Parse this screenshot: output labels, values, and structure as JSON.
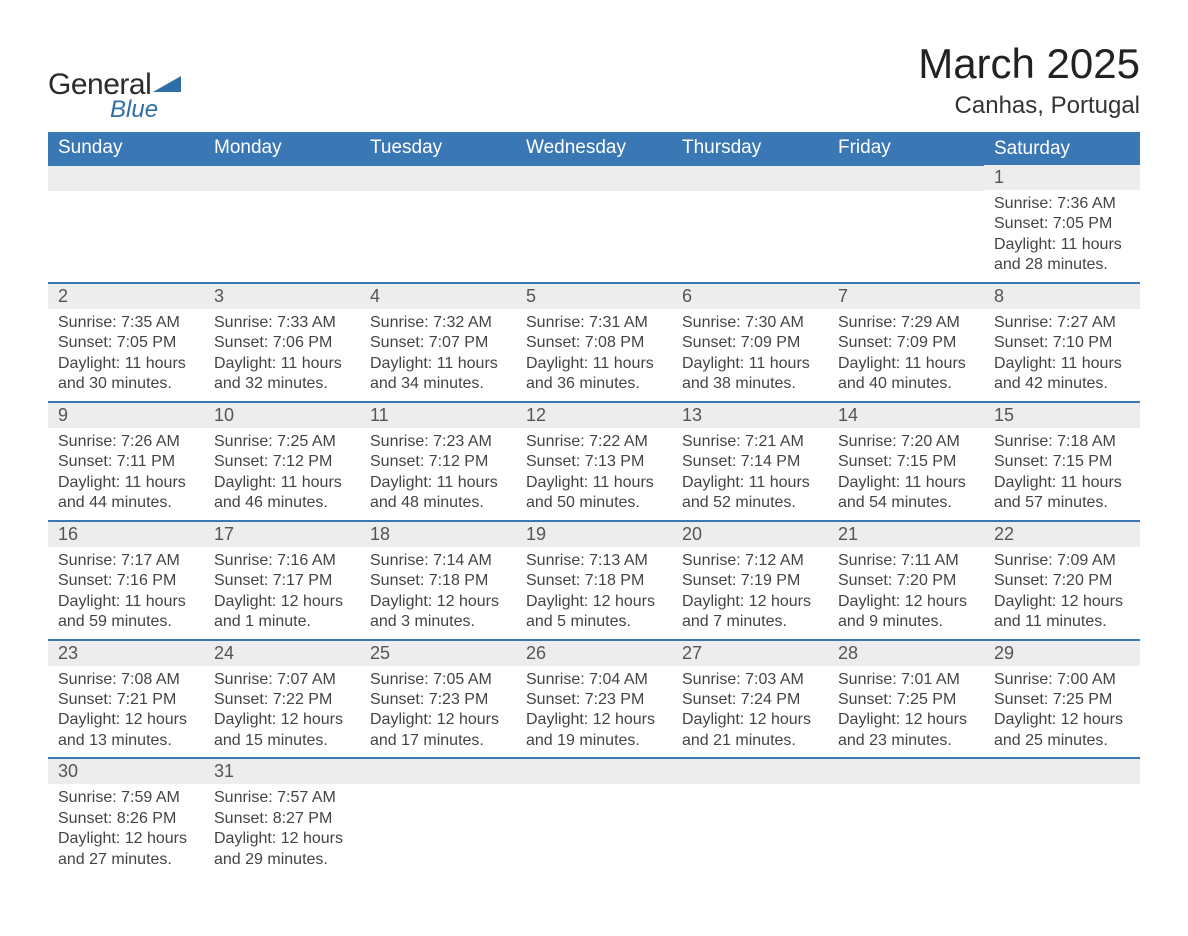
{
  "logo": {
    "text1": "General",
    "text2": "Blue",
    "tri_color": "#2f6fa8"
  },
  "title": "March 2025",
  "location": "Canhas, Portugal",
  "colors": {
    "header_bg": "#3a78b5",
    "header_text": "#ffffff",
    "daynum_bg": "#ededed",
    "row_border": "#3a78b5",
    "body_text": "#444444"
  },
  "day_headers": [
    "Sunday",
    "Monday",
    "Tuesday",
    "Wednesday",
    "Thursday",
    "Friday",
    "Saturday"
  ],
  "weeks": [
    [
      null,
      null,
      null,
      null,
      null,
      null,
      {
        "n": "1",
        "sr": "7:36 AM",
        "ss": "7:05 PM",
        "dl": "11 hours and 28 minutes."
      }
    ],
    [
      {
        "n": "2",
        "sr": "7:35 AM",
        "ss": "7:05 PM",
        "dl": "11 hours and 30 minutes."
      },
      {
        "n": "3",
        "sr": "7:33 AM",
        "ss": "7:06 PM",
        "dl": "11 hours and 32 minutes."
      },
      {
        "n": "4",
        "sr": "7:32 AM",
        "ss": "7:07 PM",
        "dl": "11 hours and 34 minutes."
      },
      {
        "n": "5",
        "sr": "7:31 AM",
        "ss": "7:08 PM",
        "dl": "11 hours and 36 minutes."
      },
      {
        "n": "6",
        "sr": "7:30 AM",
        "ss": "7:09 PM",
        "dl": "11 hours and 38 minutes."
      },
      {
        "n": "7",
        "sr": "7:29 AM",
        "ss": "7:09 PM",
        "dl": "11 hours and 40 minutes."
      },
      {
        "n": "8",
        "sr": "7:27 AM",
        "ss": "7:10 PM",
        "dl": "11 hours and 42 minutes."
      }
    ],
    [
      {
        "n": "9",
        "sr": "7:26 AM",
        "ss": "7:11 PM",
        "dl": "11 hours and 44 minutes."
      },
      {
        "n": "10",
        "sr": "7:25 AM",
        "ss": "7:12 PM",
        "dl": "11 hours and 46 minutes."
      },
      {
        "n": "11",
        "sr": "7:23 AM",
        "ss": "7:12 PM",
        "dl": "11 hours and 48 minutes."
      },
      {
        "n": "12",
        "sr": "7:22 AM",
        "ss": "7:13 PM",
        "dl": "11 hours and 50 minutes."
      },
      {
        "n": "13",
        "sr": "7:21 AM",
        "ss": "7:14 PM",
        "dl": "11 hours and 52 minutes."
      },
      {
        "n": "14",
        "sr": "7:20 AM",
        "ss": "7:15 PM",
        "dl": "11 hours and 54 minutes."
      },
      {
        "n": "15",
        "sr": "7:18 AM",
        "ss": "7:15 PM",
        "dl": "11 hours and 57 minutes."
      }
    ],
    [
      {
        "n": "16",
        "sr": "7:17 AM",
        "ss": "7:16 PM",
        "dl": "11 hours and 59 minutes."
      },
      {
        "n": "17",
        "sr": "7:16 AM",
        "ss": "7:17 PM",
        "dl": "12 hours and 1 minute."
      },
      {
        "n": "18",
        "sr": "7:14 AM",
        "ss": "7:18 PM",
        "dl": "12 hours and 3 minutes."
      },
      {
        "n": "19",
        "sr": "7:13 AM",
        "ss": "7:18 PM",
        "dl": "12 hours and 5 minutes."
      },
      {
        "n": "20",
        "sr": "7:12 AM",
        "ss": "7:19 PM",
        "dl": "12 hours and 7 minutes."
      },
      {
        "n": "21",
        "sr": "7:11 AM",
        "ss": "7:20 PM",
        "dl": "12 hours and 9 minutes."
      },
      {
        "n": "22",
        "sr": "7:09 AM",
        "ss": "7:20 PM",
        "dl": "12 hours and 11 minutes."
      }
    ],
    [
      {
        "n": "23",
        "sr": "7:08 AM",
        "ss": "7:21 PM",
        "dl": "12 hours and 13 minutes."
      },
      {
        "n": "24",
        "sr": "7:07 AM",
        "ss": "7:22 PM",
        "dl": "12 hours and 15 minutes."
      },
      {
        "n": "25",
        "sr": "7:05 AM",
        "ss": "7:23 PM",
        "dl": "12 hours and 17 minutes."
      },
      {
        "n": "26",
        "sr": "7:04 AM",
        "ss": "7:23 PM",
        "dl": "12 hours and 19 minutes."
      },
      {
        "n": "27",
        "sr": "7:03 AM",
        "ss": "7:24 PM",
        "dl": "12 hours and 21 minutes."
      },
      {
        "n": "28",
        "sr": "7:01 AM",
        "ss": "7:25 PM",
        "dl": "12 hours and 23 minutes."
      },
      {
        "n": "29",
        "sr": "7:00 AM",
        "ss": "7:25 PM",
        "dl": "12 hours and 25 minutes."
      }
    ],
    [
      {
        "n": "30",
        "sr": "7:59 AM",
        "ss": "8:26 PM",
        "dl": "12 hours and 27 minutes."
      },
      {
        "n": "31",
        "sr": "7:57 AM",
        "ss": "8:27 PM",
        "dl": "12 hours and 29 minutes."
      },
      null,
      null,
      null,
      null,
      null
    ]
  ],
  "labels": {
    "sunrise": "Sunrise:",
    "sunset": "Sunset:",
    "daylight": "Daylight:"
  }
}
